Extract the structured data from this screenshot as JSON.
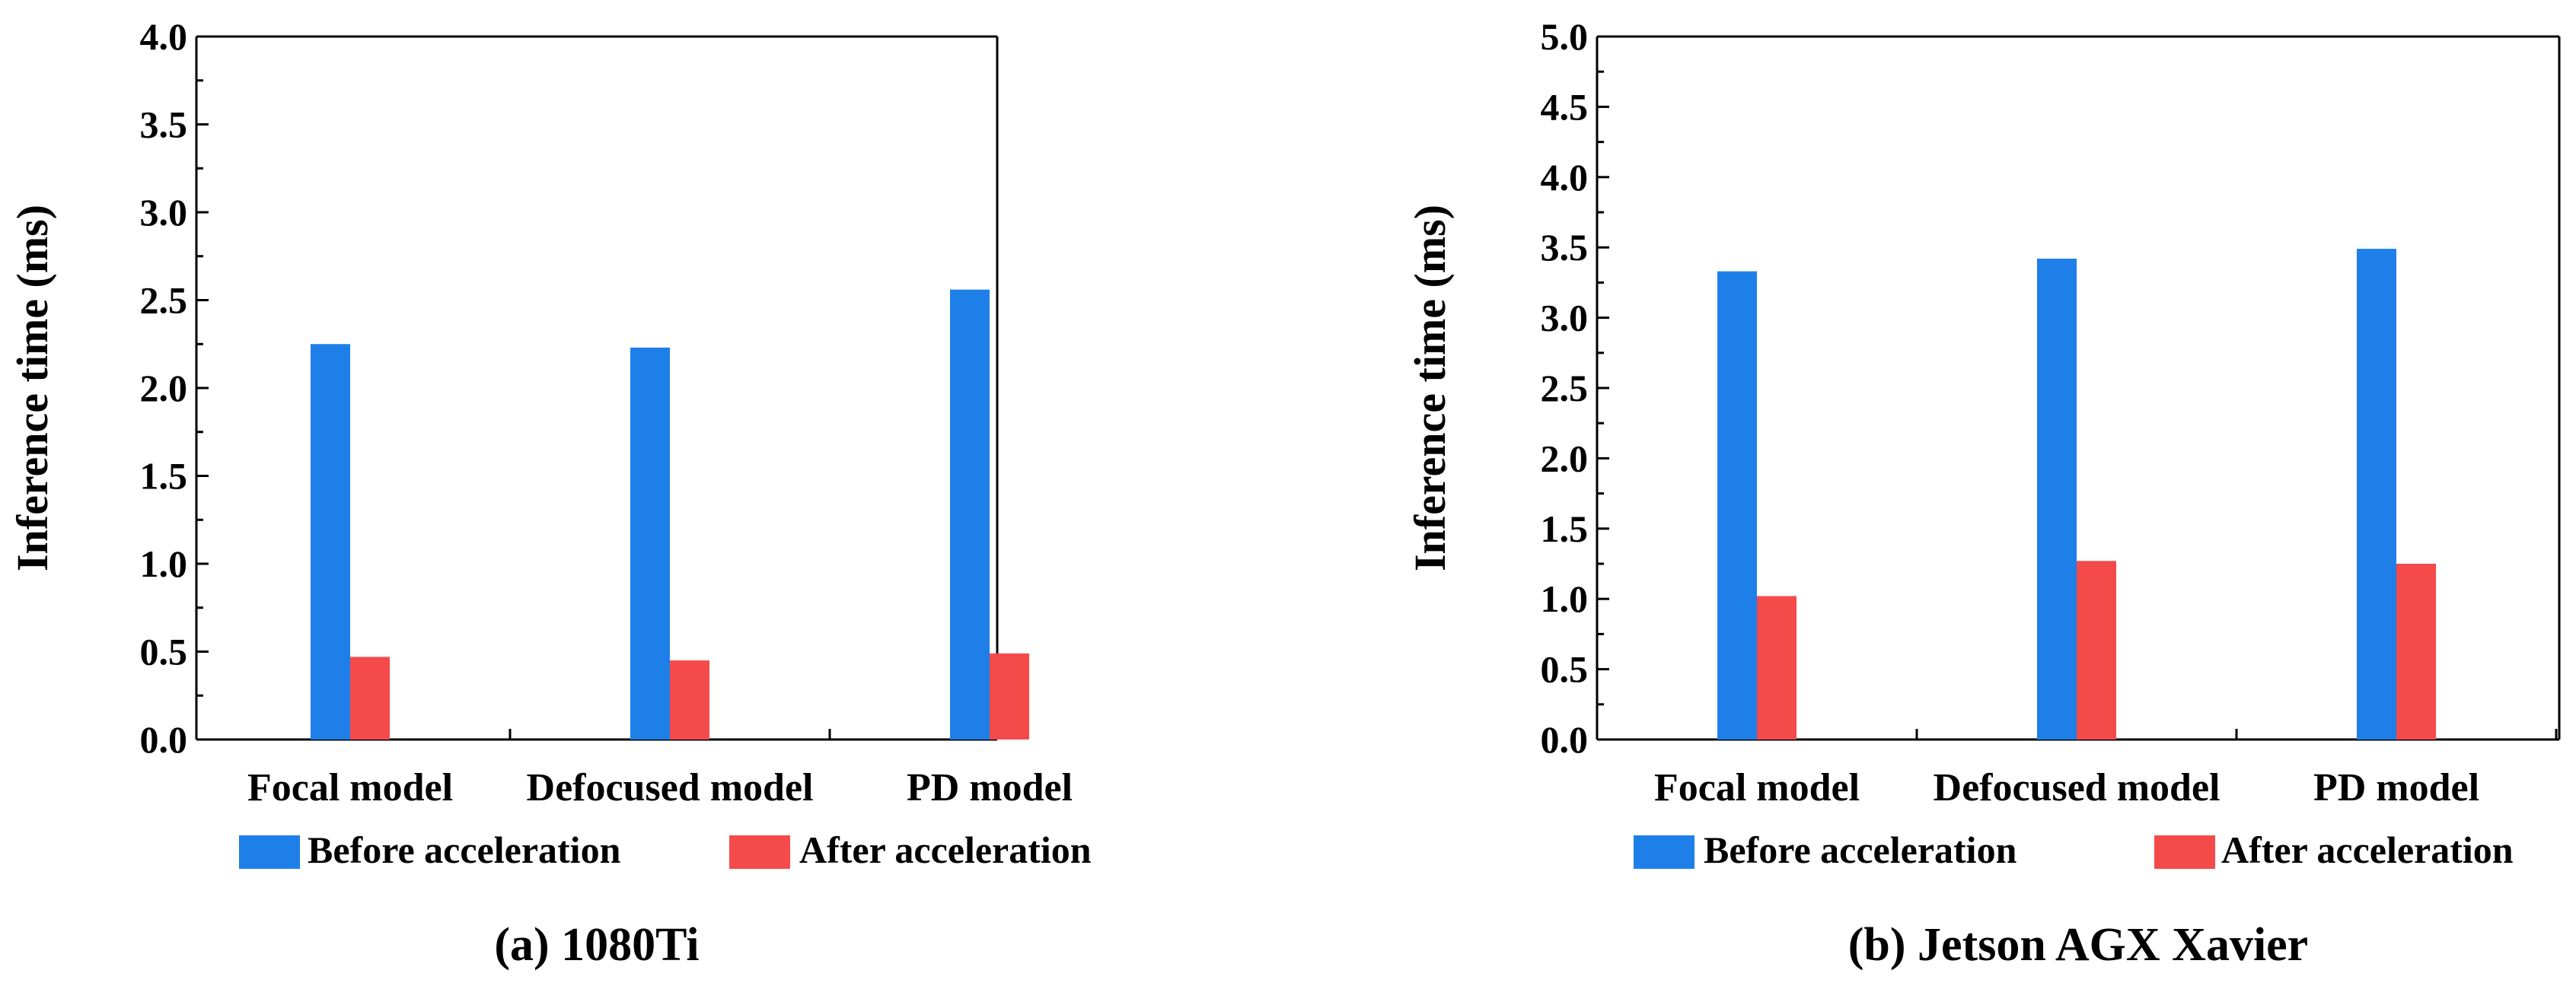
{
  "chart_data": [
    {
      "type": "bar",
      "caption": "(a) 1080Ti",
      "categories": [
        "Focal model",
        "Defocused model",
        "PD model"
      ],
      "series": [
        {
          "name": "Before acceleration",
          "color": "#1e7fe8",
          "values": [
            2.25,
            2.23,
            2.56
          ]
        },
        {
          "name": "After acceleration",
          "color": "#f54a4a",
          "values": [
            0.47,
            0.45,
            0.49
          ]
        }
      ],
      "xlabel": "",
      "ylabel": "Inference time (ms)",
      "ylim": [
        0,
        4.0
      ],
      "yticks": [
        "0.0",
        "0.5",
        "1.0",
        "1.5",
        "2.0",
        "2.5",
        "3.0",
        "3.5",
        "4.0"
      ],
      "legend": "bottom",
      "grid": false
    },
    {
      "type": "bar",
      "caption": "(b) Jetson AGX Xavier",
      "categories": [
        "Focal model",
        "Defocused model",
        "PD model"
      ],
      "series": [
        {
          "name": "Before acceleration",
          "color": "#1e7fe8",
          "values": [
            3.33,
            3.42,
            3.49
          ]
        },
        {
          "name": "After acceleration",
          "color": "#f54a4a",
          "values": [
            1.02,
            1.27,
            1.25
          ]
        }
      ],
      "xlabel": "",
      "ylabel": "Inference time (ms)",
      "ylim": [
        0,
        5.0
      ],
      "yticks": [
        "0.0",
        "0.5",
        "1.0",
        "1.5",
        "2.0",
        "2.5",
        "3.0",
        "3.5",
        "4.0",
        "4.5",
        "5.0"
      ],
      "legend": "bottom",
      "grid": false
    }
  ]
}
